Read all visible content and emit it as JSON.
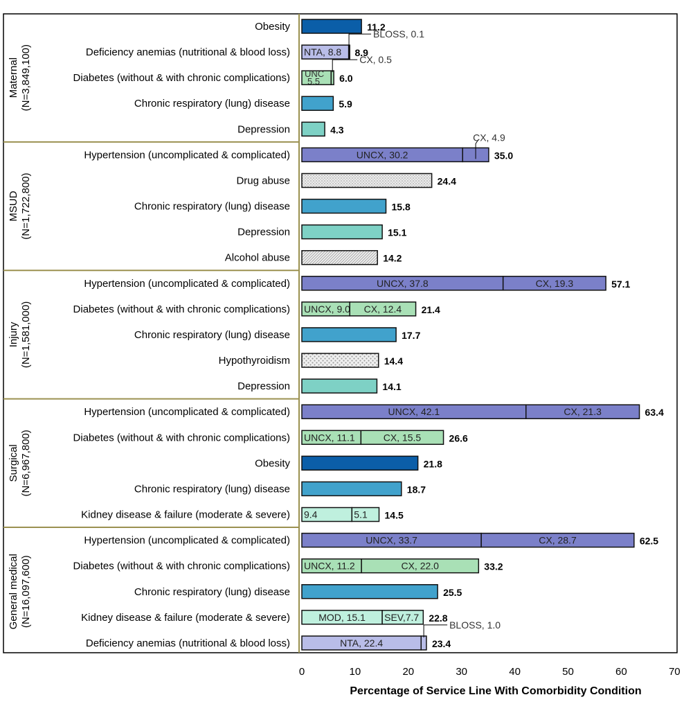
{
  "chart_data": {
    "type": "bar",
    "orientation": "horizontal",
    "stacked": true,
    "xlabel": "Percentage of Service Line With Comorbidity Condition",
    "xlim": [
      0,
      70
    ],
    "xticks": [
      "0",
      "10",
      "20",
      "30",
      "40",
      "50",
      "60",
      "70"
    ],
    "grid": false,
    "colors": {
      "obesity": "#0b5ea8",
      "anemia": "#b9bde8",
      "diabetes": "#a9e0b6",
      "respiratory": "#41a2cc",
      "depression": "#7ed1c5",
      "hypertension": "#7b80c9",
      "kidney": "#bff0de",
      "pattern_fill": "#e6e6e6",
      "separator": "#9b9150"
    },
    "groups": [
      {
        "name": "Maternal",
        "n": "(N=3,849,100)",
        "rows": [
          {
            "label": "Obesity",
            "total": "11.2",
            "fill": "obesity",
            "segments": [
              {
                "value": 11.2,
                "label": ""
              }
            ]
          },
          {
            "label": "Deficiency anemias (nutritional & blood loss)",
            "total": "8.9",
            "fill": "anemia",
            "segments": [
              {
                "value": 8.8,
                "label": "NTA, 8.8"
              },
              {
                "value": 0.1,
                "label": "",
                "callout": "BLOSS, 0.1"
              }
            ]
          },
          {
            "label": "Diabetes (without & with chronic complications)",
            "total": "6.0",
            "fill": "diabetes",
            "segments": [
              {
                "value": 5.5,
                "label": "UNC",
                "label2": "5.5"
              },
              {
                "value": 0.5,
                "label": "",
                "callout": "CX, 0.5"
              }
            ]
          },
          {
            "label": "Chronic respiratory (lung) disease",
            "total": "5.9",
            "fill": "respiratory",
            "segments": [
              {
                "value": 5.9,
                "label": ""
              }
            ]
          },
          {
            "label": "Depression",
            "total": "4.3",
            "fill": "depression",
            "segments": [
              {
                "value": 4.3,
                "label": ""
              }
            ]
          }
        ]
      },
      {
        "name": "MSUD",
        "n": "(N=1,722,800)",
        "rows": [
          {
            "label": "Hypertension (uncomplicated & complicated)",
            "total": "35.0",
            "fill": "hypertension",
            "segments": [
              {
                "value": 30.2,
                "label": "UNCX,   30.2"
              },
              {
                "value": 4.9,
                "label": "",
                "callout": "CX, 4.9"
              }
            ]
          },
          {
            "label": "Drug abuse",
            "total": "24.4",
            "fill": "pattern-fine-dots",
            "segments": [
              {
                "value": 24.4,
                "label": ""
              }
            ]
          },
          {
            "label": "Chronic respiratory (lung) disease",
            "total": "15.8",
            "fill": "respiratory",
            "segments": [
              {
                "value": 15.8,
                "label": ""
              }
            ]
          },
          {
            "label": "Depression",
            "total": "15.1",
            "fill": "depression",
            "segments": [
              {
                "value": 15.1,
                "label": ""
              }
            ]
          },
          {
            "label": "Alcohol abuse",
            "total": "14.2",
            "fill": "pattern-diagonal",
            "segments": [
              {
                "value": 14.2,
                "label": ""
              }
            ]
          }
        ]
      },
      {
        "name": "Injury",
        "n": "(N=1,581,000)",
        "rows": [
          {
            "label": "Hypertension (uncomplicated & complicated)",
            "total": "57.1",
            "fill": "hypertension",
            "segments": [
              {
                "value": 37.8,
                "label": "UNCX, 37.8"
              },
              {
                "value": 19.3,
                "label": "CX, 19.3"
              }
            ]
          },
          {
            "label": "Diabetes (without & with chronic complications)",
            "total": "21.4",
            "fill": "diabetes",
            "segments": [
              {
                "value": 9.0,
                "label": "UNCX, 9.0"
              },
              {
                "value": 12.4,
                "label": "CX, 12.4"
              }
            ]
          },
          {
            "label": "Chronic respiratory (lung) disease",
            "total": "17.7",
            "fill": "respiratory",
            "segments": [
              {
                "value": 17.7,
                "label": ""
              }
            ]
          },
          {
            "label": "Hypothyroidism",
            "total": "14.4",
            "fill": "pattern-dots",
            "segments": [
              {
                "value": 14.4,
                "label": ""
              }
            ]
          },
          {
            "label": "Depression",
            "total": "14.1",
            "fill": "depression",
            "segments": [
              {
                "value": 14.1,
                "label": ""
              }
            ]
          }
        ]
      },
      {
        "name": "Surgical",
        "n": "(N=6,967,800)",
        "rows": [
          {
            "label": "Hypertension (uncomplicated & complicated)",
            "total": "63.4",
            "fill": "hypertension",
            "segments": [
              {
                "value": 42.1,
                "label": "UNCX, 42.1"
              },
              {
                "value": 21.3,
                "label": "CX, 21.3"
              }
            ]
          },
          {
            "label": "Diabetes (without & with chronic complications)",
            "total": "26.6",
            "fill": "diabetes",
            "segments": [
              {
                "value": 11.1,
                "label": "UNCX, 11.1"
              },
              {
                "value": 15.5,
                "label": "CX, 15.5"
              }
            ]
          },
          {
            "label": "Obesity",
            "total": "21.8",
            "fill": "obesity",
            "segments": [
              {
                "value": 21.8,
                "label": ""
              }
            ]
          },
          {
            "label": "Chronic respiratory (lung) disease",
            "total": "18.7",
            "fill": "respiratory",
            "segments": [
              {
                "value": 18.7,
                "label": ""
              }
            ]
          },
          {
            "label": "Kidney disease & failure (moderate & severe)",
            "total": "14.5",
            "fill": "kidney",
            "segments": [
              {
                "value": 9.4,
                "label": "9.4"
              },
              {
                "value": 5.1,
                "label": "5.1"
              }
            ]
          }
        ]
      },
      {
        "name": "General medical",
        "n": "(N=16,097,600)",
        "rows": [
          {
            "label": "Hypertension (uncomplicated & complicated)",
            "total": "62.5",
            "fill": "hypertension",
            "segments": [
              {
                "value": 33.7,
                "label": "UNCX, 33.7"
              },
              {
                "value": 28.7,
                "label": "CX, 28.7"
              }
            ]
          },
          {
            "label": "Diabetes (without & with chronic complications)",
            "total": "33.2",
            "fill": "diabetes",
            "segments": [
              {
                "value": 11.2,
                "label": "UNCX, 11.2"
              },
              {
                "value": 22.0,
                "label": "CX, 22.0"
              }
            ]
          },
          {
            "label": "Chronic respiratory (lung) disease",
            "total": "25.5",
            "fill": "respiratory",
            "segments": [
              {
                "value": 25.5,
                "label": ""
              }
            ]
          },
          {
            "label": "Kidney disease & failure (moderate & severe)",
            "total": "22.8",
            "fill": "kidney",
            "segments": [
              {
                "value": 15.1,
                "label": "MOD, 15.1"
              },
              {
                "value": 7.7,
                "label": "SEV,7.7"
              }
            ]
          },
          {
            "label": "Deficiency anemias (nutritional & blood loss)",
            "total": "23.4",
            "fill": "anemia",
            "segments": [
              {
                "value": 22.4,
                "label": "NTA,  22.4"
              },
              {
                "value": 1.0,
                "label": "",
                "callout": "BLOSS, 1.0"
              }
            ]
          }
        ]
      }
    ]
  }
}
